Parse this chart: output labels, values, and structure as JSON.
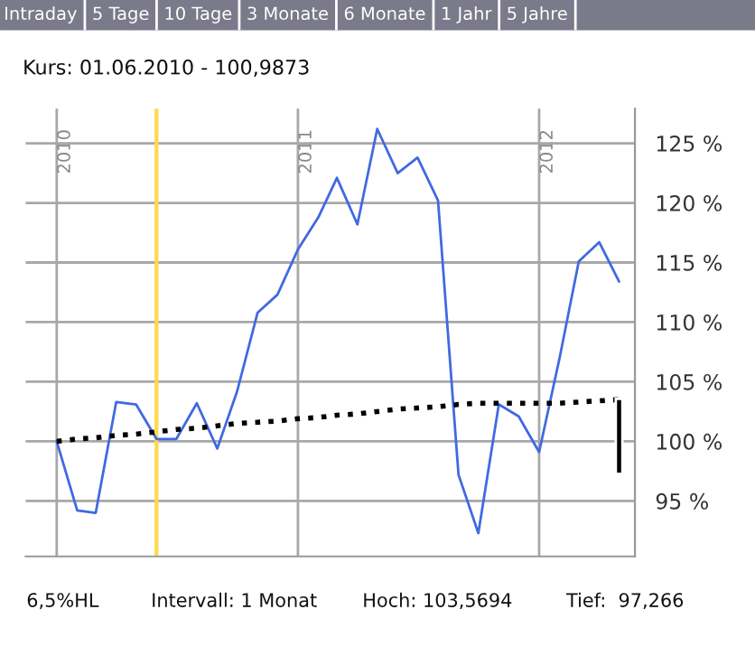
{
  "chart_data": {
    "type": "line",
    "title": "Kurs: 01.06.2010 - 100,9873",
    "annotations": [
      "Intraday",
      "5 Tage",
      "10 Tage",
      "3 Monate",
      "6 Monate",
      "1 Jahr",
      "5 Jahre",
      "6,5%HL",
      "Intervall: 1 Monat",
      "Hoch: 103,5694",
      "Tief:  97,266"
    ],
    "x": [
      "2010-01",
      "2010-02",
      "2010-03",
      "2010-04",
      "2010-05",
      "2010-06",
      "2010-07",
      "2010-08",
      "2010-09",
      "2010-10",
      "2010-11",
      "2010-12",
      "2011-01",
      "2011-02",
      "2011-03",
      "2011-04",
      "2011-05",
      "2011-06",
      "2011-07",
      "2011-08",
      "2011-09",
      "2011-10",
      "2011-11",
      "2011-12",
      "2012-01",
      "2012-02",
      "2012-03",
      "2012-04",
      "2012-05"
    ],
    "series": [
      {
        "color": "#4169e1",
        "line_style": "solid",
        "values": [
          100.0,
          94.2,
          94.0,
          103.3,
          103.1,
          100.2,
          100.2,
          103.2,
          99.4,
          104.2,
          110.8,
          112.3,
          116.1,
          118.8,
          122.1,
          118.2,
          126.2,
          122.5,
          123.8,
          120.2,
          97.2,
          92.3,
          103.1,
          102.1,
          99.1,
          107.0,
          115.1,
          116.7,
          113.4
        ]
      },
      {
        "color": "#000000",
        "line_style": "dotted",
        "values": [
          100.0,
          100.2,
          100.3,
          100.5,
          100.6,
          100.8,
          101.0,
          101.1,
          101.3,
          101.5,
          101.6,
          101.7,
          101.9,
          102.0,
          102.2,
          102.3,
          102.5,
          102.7,
          102.8,
          102.9,
          103.1,
          103.2,
          103.2,
          103.2,
          103.2,
          103.2,
          103.3,
          103.4,
          103.5
        ]
      },
      {
        "type": "bar",
        "color": "#000000",
        "x": [
          "2012-05"
        ],
        "base": [
          97.266
        ],
        "values": [
          6.3
        ]
      }
    ],
    "ref_lines": [
      {
        "axis": "x",
        "value": "2010-06-01",
        "color": "#ffd94a"
      }
    ],
    "xlim": [
      "2009-11-15",
      "2012-05-25"
    ],
    "xticks": [
      {
        "value": "2010-01-01",
        "label": "2010"
      },
      {
        "value": "2011-01-01",
        "label": "2011"
      },
      {
        "value": "2012-01-01",
        "label": "2012"
      }
    ],
    "ylim": [
      90.35,
      127.9
    ],
    "yticks": [
      {
        "value": 95,
        "label": "95 %"
      },
      {
        "value": 100,
        "label": "100 %"
      },
      {
        "value": 105,
        "label": "105 %"
      },
      {
        "value": 110,
        "label": "110 %"
      },
      {
        "value": 115,
        "label": "115 %"
      },
      {
        "value": 120,
        "label": "120 %"
      },
      {
        "value": 125,
        "label": "125 %"
      }
    ],
    "grid": true,
    "legend": false,
    "marker": "none"
  }
}
